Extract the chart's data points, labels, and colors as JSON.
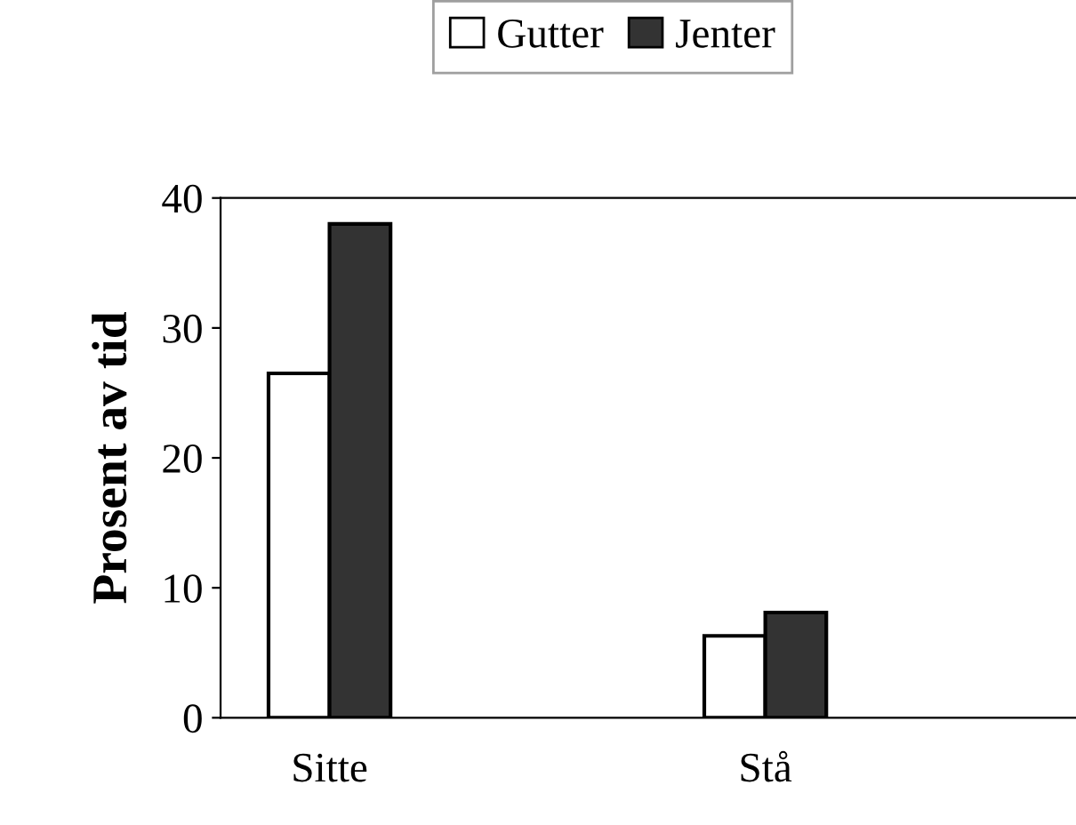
{
  "chart_data": {
    "type": "bar",
    "ylabel": "Prosent av tid",
    "categories": [
      "Sitte",
      null,
      "Stå",
      null
    ],
    "series": [
      {
        "name": "Gutter",
        "color": "#ffffff",
        "values": [
          26.5,
          null,
          6.3,
          null
        ]
      },
      {
        "name": "Jenter",
        "color": "#333333",
        "values": [
          38,
          null,
          8.1,
          null
        ]
      }
    ],
    "ylim": [
      0,
      40
    ],
    "yticks": [
      0,
      10,
      20,
      30,
      40
    ],
    "grid": false,
    "legend": "top"
  }
}
